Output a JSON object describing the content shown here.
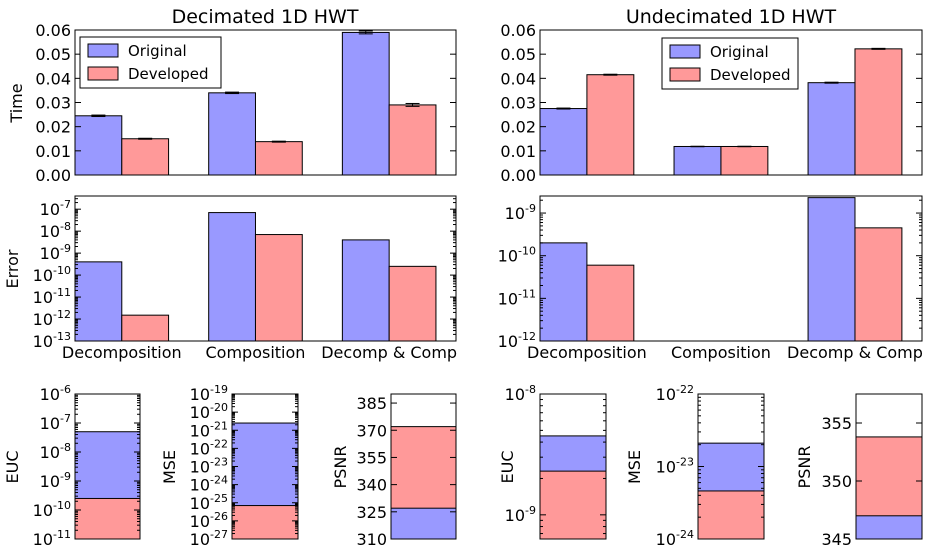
{
  "colors": {
    "original": "#9999ff",
    "developed": "#ff9999"
  },
  "chart_data": [
    {
      "type": "bar",
      "title": "Decimated 1D HWT",
      "ylabel": "Time",
      "categories": [
        "Decomposition",
        "Composition",
        "Decomp & Comp"
      ],
      "series": [
        {
          "name": "Original",
          "values": [
            0.0245,
            0.034,
            0.059
          ],
          "errors": [
            0.0003,
            0.0003,
            0.0006
          ]
        },
        {
          "name": "Developed",
          "values": [
            0.015,
            0.0138,
            0.029
          ],
          "errors": [
            0.0002,
            0.0002,
            0.0006
          ]
        }
      ],
      "ylim": [
        0,
        0.06
      ],
      "yticks": [
        "0.00",
        "0.01",
        "0.02",
        "0.03",
        "0.04",
        "0.05",
        "0.06"
      ],
      "legend": "top-left"
    },
    {
      "type": "bar",
      "title": "Undecimated 1D HWT",
      "ylabel": "",
      "categories": [
        "Decomposition",
        "Composition",
        "Decomp & Comp"
      ],
      "series": [
        {
          "name": "Original",
          "values": [
            0.0275,
            0.0118,
            0.0382
          ],
          "errors": [
            0.0002,
            0.0001,
            0.0002
          ]
        },
        {
          "name": "Developed",
          "values": [
            0.0415,
            0.0118,
            0.0522
          ],
          "errors": [
            0.0002,
            0.0001,
            0.0002
          ]
        }
      ],
      "ylim": [
        0,
        0.06
      ],
      "yticks": [
        "0.00",
        "0.01",
        "0.02",
        "0.03",
        "0.04",
        "0.05",
        "0.06"
      ],
      "legend": "top-center"
    },
    {
      "type": "bar",
      "ylabel": "Error",
      "yscale": "log",
      "categories": [
        "Decomposition",
        "Composition",
        "Decomp & Comp"
      ],
      "series": [
        {
          "name": "Original",
          "values": [
            4e-10,
            7e-08,
            4e-09
          ]
        },
        {
          "name": "Developed",
          "values": [
            1.5e-12,
            7e-09,
            2.5e-10
          ]
        }
      ],
      "ylim_exp": [
        -13,
        -6.4
      ],
      "yticks_exp": [
        -13,
        -12,
        -11,
        -10,
        -9,
        -8,
        -7
      ]
    },
    {
      "type": "bar",
      "ylabel": "",
      "yscale": "log",
      "categories": [
        "Decomposition",
        "Composition",
        "Decomp & Comp"
      ],
      "series": [
        {
          "name": "Original",
          "values": [
            2e-10,
            null,
            2.3e-09
          ]
        },
        {
          "name": "Developed",
          "values": [
            6e-11,
            null,
            4.5e-10
          ]
        }
      ],
      "ylim_exp": [
        -12,
        -8.6
      ],
      "yticks_exp": [
        -12,
        -11,
        -10,
        -9
      ]
    },
    {
      "type": "bar",
      "ylabel": "EUC",
      "yscale": "log",
      "series": [
        {
          "name": "Original",
          "values": [
            5e-08
          ]
        },
        {
          "name": "Developed",
          "values": [
            2.5e-10
          ]
        }
      ],
      "ylim_exp": [
        -11,
        -6
      ],
      "yticks_exp": [
        -11,
        -10,
        -9,
        -8,
        -7,
        -6
      ]
    },
    {
      "type": "bar",
      "ylabel": "MSE",
      "yscale": "log",
      "series": [
        {
          "name": "Original",
          "values": [
            2.5e-21
          ]
        },
        {
          "name": "Developed",
          "values": [
            7e-26
          ]
        }
      ],
      "ylim_exp": [
        -27,
        -19
      ],
      "yticks_exp": [
        -27,
        -26,
        -25,
        -24,
        -23,
        -22,
        -21,
        -20,
        -19
      ]
    },
    {
      "type": "bar",
      "ylabel": "PSNR",
      "series": [
        {
          "name": "Original",
          "values": [
            327
          ]
        },
        {
          "name": "Developed",
          "values": [
            372
          ]
        }
      ],
      "ylim": [
        310,
        390
      ],
      "yticks": [
        "310",
        "325",
        "340",
        "355",
        "370",
        "385"
      ]
    },
    {
      "type": "bar",
      "ylabel": "EUC",
      "yscale": "log",
      "series": [
        {
          "name": "Original",
          "values": [
            4.5e-09
          ]
        },
        {
          "name": "Developed",
          "values": [
            2.3e-09
          ]
        }
      ],
      "ylim_exp": [
        -9.2,
        -8
      ],
      "yticks_exp": [
        -9,
        -8
      ]
    },
    {
      "type": "bar",
      "ylabel": "MSE",
      "yscale": "log",
      "series": [
        {
          "name": "Original",
          "values": [
            2.1e-23
          ]
        },
        {
          "name": "Developed",
          "values": [
            4.6e-24
          ]
        }
      ],
      "ylim_exp": [
        -24,
        -22
      ],
      "yticks_exp": [
        -24,
        -23,
        -22
      ]
    },
    {
      "type": "bar",
      "ylabel": "PSNR",
      "series": [
        {
          "name": "Original",
          "values": [
            347
          ]
        },
        {
          "name": "Developed",
          "values": [
            353.8
          ]
        }
      ],
      "ylim": [
        345,
        357.5
      ],
      "yticks": [
        "345",
        "350",
        "355"
      ]
    }
  ]
}
